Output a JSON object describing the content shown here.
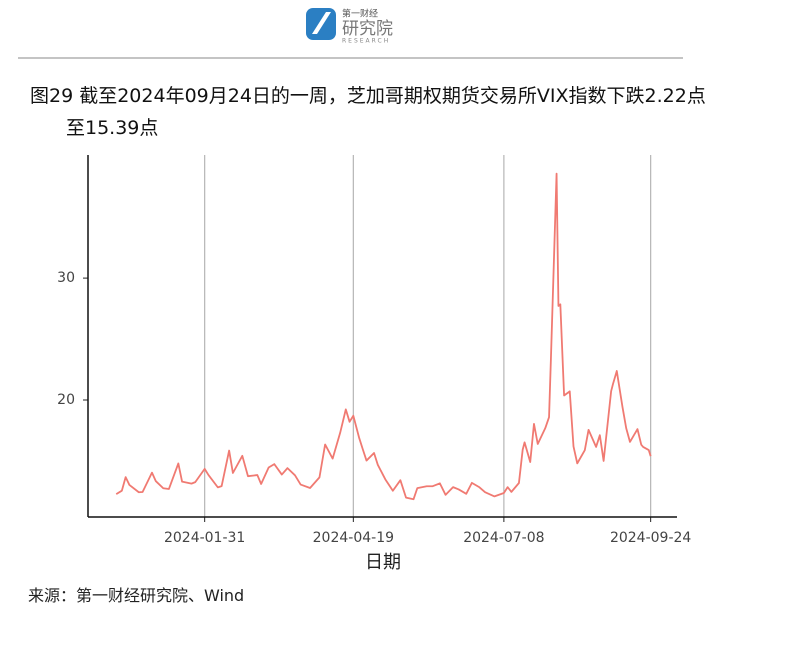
{
  "header": {
    "logo_top": "第一财经",
    "logo_main": "研究院",
    "logo_sub": "RESEARCH"
  },
  "chart_data": {
    "type": "line",
    "title": "图29  截至2024年09月24日的一周，芝加哥期权期货交易所VIX指数下跌2.22点至15.39点",
    "x_label": "日期",
    "source": "来源：第一财经研究院、Wind",
    "color": "#f07a72",
    "grid": "x",
    "xlim": [
      "2023-11-30",
      "2024-10-08"
    ],
    "xticks": [
      "2024-01-31",
      "2024-04-19",
      "2024-07-08",
      "2024-09-24"
    ],
    "ylim": [
      10.4,
      40.1
    ],
    "yticks": [
      20,
      30
    ],
    "x": [
      "2023-12-15",
      "2023-12-18",
      "2023-12-20",
      "2023-12-22",
      "2023-12-27",
      "2023-12-29",
      "2024-01-03",
      "2024-01-05",
      "2024-01-09",
      "2024-01-12",
      "2024-01-17",
      "2024-01-19",
      "2024-01-24",
      "2024-01-26",
      "2024-01-31",
      "2024-02-02",
      "2024-02-07",
      "2024-02-09",
      "2024-02-13",
      "2024-02-15",
      "2024-02-20",
      "2024-02-23",
      "2024-02-28",
      "2024-03-01",
      "2024-03-05",
      "2024-03-08",
      "2024-03-12",
      "2024-03-15",
      "2024-03-19",
      "2024-03-22",
      "2024-03-27",
      "2024-04-01",
      "2024-04-04",
      "2024-04-08",
      "2024-04-12",
      "2024-04-15",
      "2024-04-17",
      "2024-04-19",
      "2024-04-22",
      "2024-04-24",
      "2024-04-26",
      "2024-04-30",
      "2024-05-02",
      "2024-05-06",
      "2024-05-10",
      "2024-05-14",
      "2024-05-17",
      "2024-05-21",
      "2024-05-23",
      "2024-05-28",
      "2024-05-31",
      "2024-06-04",
      "2024-06-07",
      "2024-06-11",
      "2024-06-14",
      "2024-06-18",
      "2024-06-21",
      "2024-06-25",
      "2024-06-28",
      "2024-07-03",
      "2024-07-08",
      "2024-07-10",
      "2024-07-12",
      "2024-07-16",
      "2024-07-18",
      "2024-07-19",
      "2024-07-22",
      "2024-07-24",
      "2024-07-26",
      "2024-07-30",
      "2024-08-01",
      "2024-08-02",
      "2024-08-05",
      "2024-08-06",
      "2024-08-07",
      "2024-08-09",
      "2024-08-12",
      "2024-08-14",
      "2024-08-16",
      "2024-08-20",
      "2024-08-22",
      "2024-08-26",
      "2024-08-28",
      "2024-08-30",
      "2024-09-03",
      "2024-09-04",
      "2024-09-06",
      "2024-09-09",
      "2024-09-11",
      "2024-09-13",
      "2024-09-17",
      "2024-09-19",
      "2024-09-20",
      "2024-09-23",
      "2024-09-24"
    ],
    "values": [
      12.28,
      12.56,
      13.67,
      13.03,
      12.43,
      12.45,
      14.04,
      13.35,
      12.76,
      12.7,
      14.79,
      13.3,
      13.14,
      13.26,
      14.35,
      13.85,
      12.83,
      12.93,
      15.85,
      14.01,
      15.42,
      13.75,
      13.84,
      13.11,
      14.46,
      14.74,
      13.88,
      14.41,
      13.82,
      13.06,
      12.78,
      13.65,
      16.35,
      15.19,
      17.31,
      19.23,
      18.21,
      18.71,
      16.94,
      15.97,
      15.03,
      15.65,
      14.68,
      13.49,
      12.55,
      13.42,
      11.99,
      11.86,
      12.77,
      12.92,
      12.92,
      13.16,
      12.22,
      12.85,
      12.66,
      12.3,
      13.2,
      12.84,
      12.44,
      12.09,
      12.37,
      12.85,
      12.46,
      13.19,
      15.93,
      16.52,
      14.91,
      18.04,
      16.39,
      17.69,
      18.59,
      23.39,
      38.57,
      27.71,
      27.85,
      20.37,
      20.71,
      16.19,
      14.8,
      15.88,
      17.55,
      16.15,
      17.11,
      15.0,
      20.72,
      21.32,
      22.38,
      19.45,
      17.69,
      16.56,
      17.61,
      16.33,
      16.15,
      15.89,
      15.39
    ]
  }
}
